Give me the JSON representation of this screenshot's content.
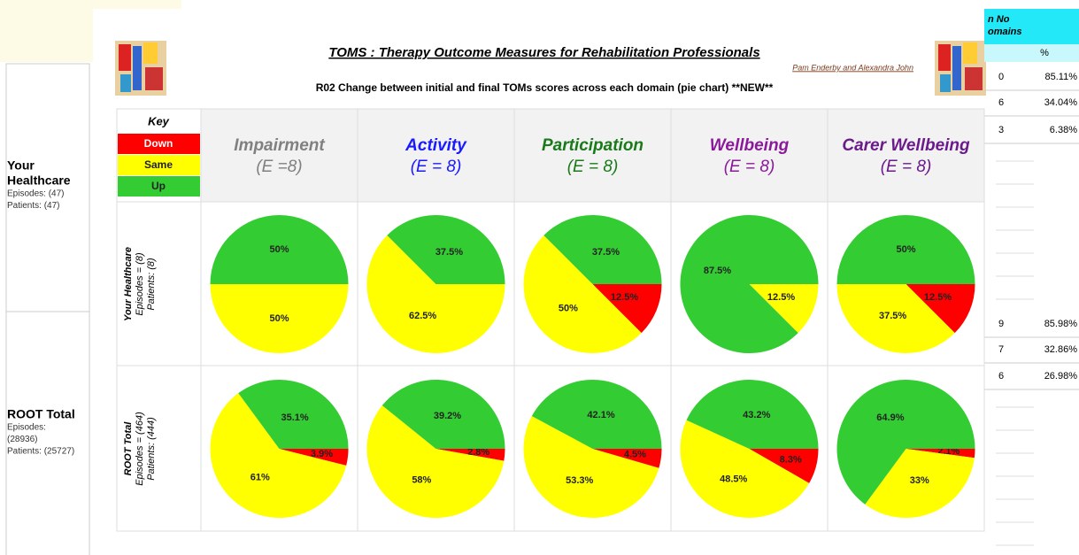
{
  "left_panel": {
    "groups": [
      {
        "name_lines": [
          "Your",
          "Healthcare"
        ],
        "detail_lines": [
          "Episodes: (47)",
          "Patients: (47)"
        ]
      },
      {
        "name_lines": [
          "ROOT Total"
        ],
        "detail_lines": [
          "Episodes:",
          "(28936)",
          "Patients: (25727)"
        ]
      }
    ]
  },
  "right_panel": {
    "header_lines": [
      "n No",
      "omains"
    ],
    "column_header": "%",
    "rows": [
      [
        "0",
        "85.11%"
      ],
      [
        "6",
        "34.04%"
      ],
      [
        "3",
        "6.38%"
      ],
      [
        "9",
        "85.98%"
      ],
      [
        "7",
        "32.86%"
      ],
      [
        "6",
        "26.98%"
      ]
    ]
  },
  "report": {
    "title": "TOMS : Therapy Outcome Measures for Rehabilitation Professionals",
    "authors": "Pam Enderby and Alexandra John",
    "subtitle": "R02 Change between initial and final TOMs scores across each domain   (pie chart) **NEW**",
    "key": {
      "title": "Key",
      "items": [
        {
          "label": "Down",
          "color": "#ff0000"
        },
        {
          "label": "Same",
          "color": "#ffff00"
        },
        {
          "label": "Up",
          "color": "#33cc33"
        }
      ]
    },
    "domains": [
      {
        "name": "Impairment",
        "e_label": "(E =8)",
        "color": "#808080"
      },
      {
        "name": "Activity",
        "e_label": "(E = 8)",
        "color": "#1a1aff"
      },
      {
        "name": "Participation",
        "e_label": "(E = 8)",
        "color": "#1a7a1a"
      },
      {
        "name": "Wellbeing",
        "e_label": "(E = 8)",
        "color": "#8b1a9b"
      },
      {
        "name": "Carer Wellbeing",
        "e_label": "(E = 8)",
        "color": "#6a1a8b"
      }
    ],
    "rows": [
      {
        "name": "Your Healthcare",
        "episodes": "Episodes = (8)",
        "patients": "Patients: (8)",
        "pies": [
          {
            "values": [
              0,
              50,
              50
            ],
            "value_labels": [
              "0%",
              "50%",
              "50%"
            ]
          },
          {
            "values": [
              0,
              62.5,
              37.5
            ],
            "value_labels": [
              "0%",
              "62.5%",
              "37.5%"
            ]
          },
          {
            "values": [
              12.5,
              50,
              37.5
            ],
            "value_labels": [
              "12.5%",
              "50%",
              "37.5%"
            ]
          },
          {
            "values": [
              0,
              12.5,
              87.5
            ],
            "value_labels": [
              "0%",
              "12.5%",
              "87.5%"
            ]
          },
          {
            "values": [
              12.5,
              37.5,
              50
            ],
            "value_labels": [
              "12.5%",
              "37.5%",
              "50%"
            ]
          }
        ]
      },
      {
        "name": "ROOT Total",
        "episodes": "Episodes = (464)",
        "patients": "Patients: (444)",
        "pies": [
          {
            "values": [
              3.9,
              61,
              35.1
            ],
            "value_labels": [
              "3.9%",
              "61%",
              "35.1%"
            ]
          },
          {
            "values": [
              2.8,
              58,
              39.2
            ],
            "value_labels": [
              "2.8%",
              "58%",
              "39.2%"
            ]
          },
          {
            "values": [
              4.5,
              53.3,
              42.1
            ],
            "value_labels": [
              "4.5%",
              "53.3%",
              "42.1%"
            ]
          },
          {
            "values": [
              8.3,
              48.5,
              43.2
            ],
            "value_labels": [
              "8.3%",
              "48.5%",
              "43.2%"
            ]
          },
          {
            "values": [
              2.1,
              33,
              64.9
            ],
            "value_labels": [
              "2.1%",
              "33%",
              "64.9%"
            ]
          }
        ]
      }
    ]
  }
}
